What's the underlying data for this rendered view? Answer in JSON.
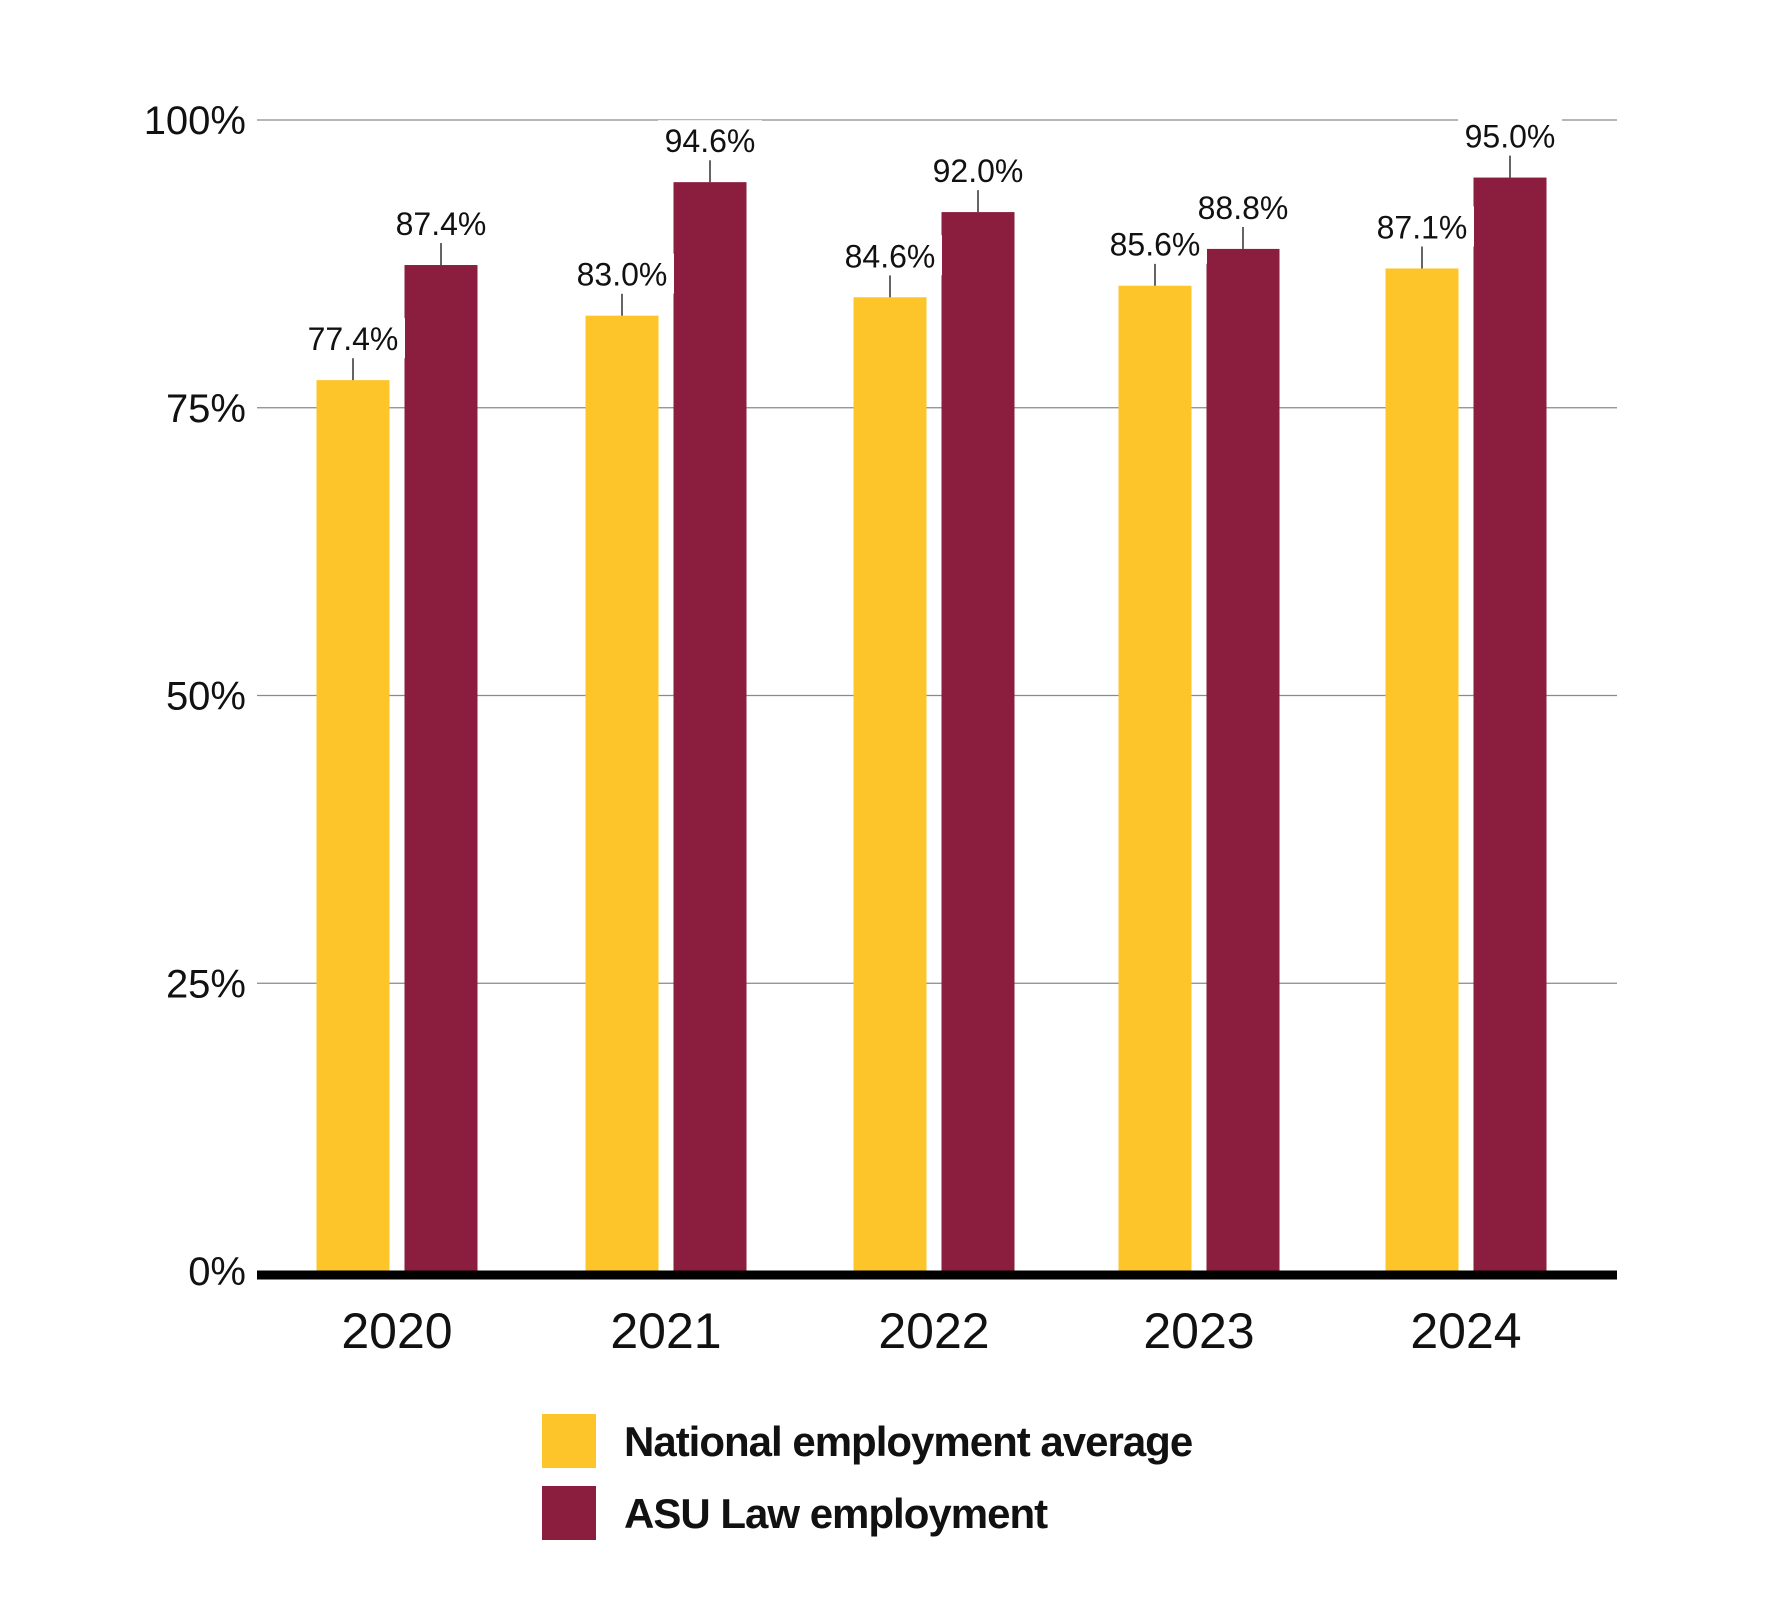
{
  "chart_data": {
    "type": "bar",
    "title": "",
    "xlabel": "",
    "ylabel": "",
    "categories": [
      "2020",
      "2021",
      "2022",
      "2023",
      "2024"
    ],
    "series": [
      {
        "name": "National employment average",
        "color": "#FDC52A",
        "values": [
          77.4,
          83.0,
          84.6,
          85.6,
          87.1
        ],
        "labels": [
          "77.4%",
          "83.0%",
          "84.6%",
          "85.6%",
          "87.1%"
        ]
      },
      {
        "name": "ASU Law employment",
        "color": "#8B1E3F",
        "values": [
          87.4,
          94.6,
          92.0,
          88.8,
          95.0
        ],
        "labels": [
          "87.4%",
          "94.6%",
          "92.0%",
          "88.8%",
          "95.0%"
        ]
      }
    ],
    "ylim": [
      0,
      100
    ],
    "yticks": [
      0,
      25,
      50,
      75,
      100
    ],
    "ytick_labels": [
      "0%",
      "25%",
      "50%",
      "75%",
      "100%"
    ],
    "grid": true,
    "legend_position": "bottom-center"
  }
}
